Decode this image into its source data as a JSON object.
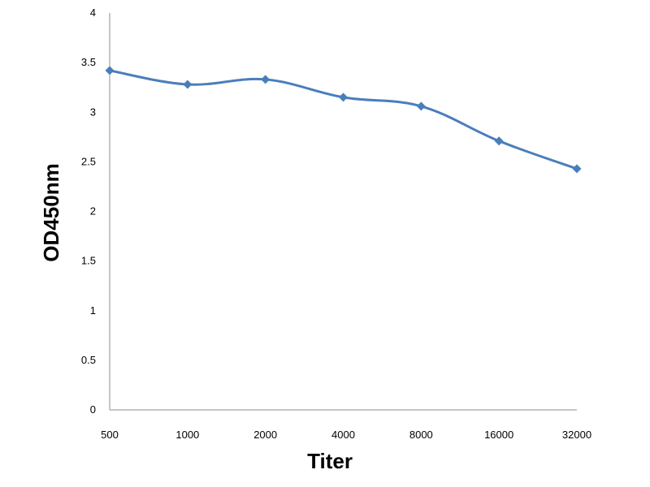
{
  "chart_data": {
    "type": "line",
    "title": "",
    "xlabel": "Titer",
    "ylabel": "OD450nm",
    "categories": [
      "500",
      "1000",
      "2000",
      "4000",
      "8000",
      "16000",
      "32000"
    ],
    "series": [
      {
        "values": [
          3.42,
          3.28,
          3.33,
          3.15,
          3.06,
          2.71,
          2.43
        ]
      }
    ],
    "ylim": [
      0,
      4
    ],
    "yticks": [
      "0",
      "0.5",
      "1",
      "1.5",
      "2",
      "2.5",
      "3",
      "3.5",
      "4"
    ],
    "grid": false,
    "legend": "none",
    "line_color": "#4a7ebb",
    "marker": "diamond"
  }
}
